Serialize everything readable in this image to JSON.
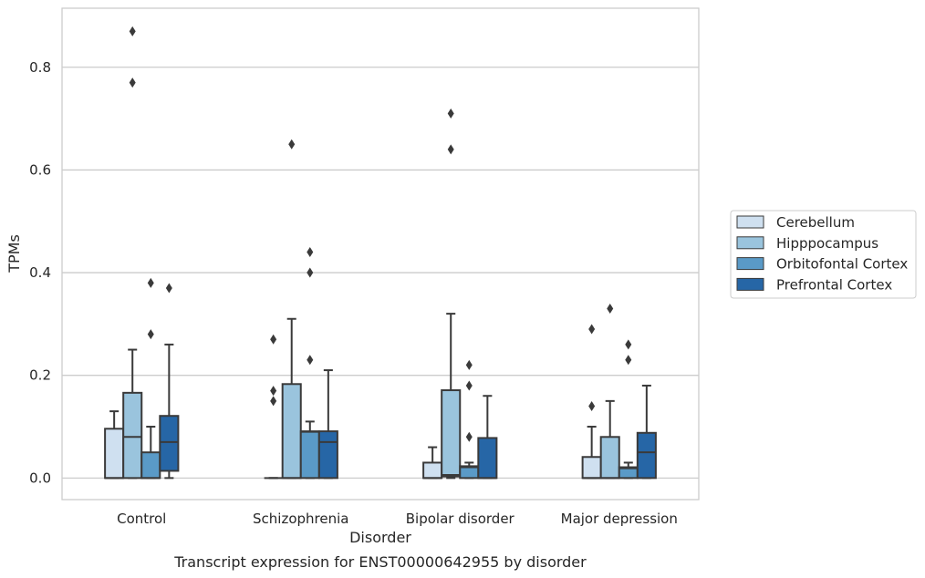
{
  "chart_data": {
    "type": "box",
    "caption": "Transcript expression for ENST00000642955 by disorder",
    "xlabel": "Disorder",
    "ylabel": "TPMs",
    "ylim": [
      -0.042,
      0.915
    ],
    "yticks": [
      0.0,
      0.2,
      0.4,
      0.6,
      0.8
    ],
    "ytick_labels": [
      "0.0",
      "0.2",
      "0.4",
      "0.6",
      "0.8"
    ],
    "grid": "horizontal",
    "legend_position": "right",
    "categories": [
      "Control",
      "Schizophrenia",
      "Bipolar disorder",
      "Major depression"
    ],
    "series": [
      {
        "name": "Cerebellum",
        "color": "#cfe0f0",
        "boxes": [
          {
            "q1": 0.0,
            "median": 0.0,
            "q3": 0.096,
            "whisker_low": 0.0,
            "whisker_high": 0.13,
            "outliers": []
          },
          {
            "q1": 0.0,
            "median": 0.0,
            "q3": 0.0,
            "whisker_low": 0.0,
            "whisker_high": 0.0,
            "outliers": [
              0.27,
              0.17,
              0.15
            ]
          },
          {
            "q1": 0.0,
            "median": 0.0,
            "q3": 0.03,
            "whisker_low": 0.0,
            "whisker_high": 0.06,
            "outliers": []
          },
          {
            "q1": 0.0,
            "median": 0.0,
            "q3": 0.041,
            "whisker_low": 0.0,
            "whisker_high": 0.1,
            "outliers": [
              0.29,
              0.14
            ]
          }
        ]
      },
      {
        "name": "Hipppocampus",
        "color": "#9ac4dd",
        "boxes": [
          {
            "q1": 0.0,
            "median": 0.08,
            "q3": 0.166,
            "whisker_low": 0.0,
            "whisker_high": 0.25,
            "outliers": [
              0.87,
              0.77
            ]
          },
          {
            "q1": 0.0,
            "median": 0.0,
            "q3": 0.183,
            "whisker_low": 0.0,
            "whisker_high": 0.31,
            "outliers": [
              0.65
            ]
          },
          {
            "q1": 0.003,
            "median": 0.006,
            "q3": 0.171,
            "whisker_low": 0.0,
            "whisker_high": 0.32,
            "outliers": [
              0.71,
              0.64
            ]
          },
          {
            "q1": 0.0,
            "median": 0.0,
            "q3": 0.08,
            "whisker_low": 0.0,
            "whisker_high": 0.15,
            "outliers": [
              0.33
            ]
          }
        ]
      },
      {
        "name": "Orbitofontal Cortex",
        "color": "#5a9ac7",
        "boxes": [
          {
            "q1": 0.0,
            "median": 0.0,
            "q3": 0.05,
            "whisker_low": 0.0,
            "whisker_high": 0.1,
            "outliers": [
              0.38,
              0.28
            ]
          },
          {
            "q1": 0.0,
            "median": 0.09,
            "q3": 0.091,
            "whisker_low": 0.0,
            "whisker_high": 0.11,
            "outliers": [
              0.44,
              0.4,
              0.23
            ]
          },
          {
            "q1": 0.0,
            "median": 0.021,
            "q3": 0.023,
            "whisker_low": 0.0,
            "whisker_high": 0.03,
            "outliers": [
              0.22,
              0.18,
              0.08
            ]
          },
          {
            "q1": 0.0,
            "median": 0.019,
            "q3": 0.021,
            "whisker_low": 0.0,
            "whisker_high": 0.03,
            "outliers": [
              0.26,
              0.23
            ]
          }
        ]
      },
      {
        "name": "Prefrontal Cortex",
        "color": "#2666a6",
        "boxes": [
          {
            "q1": 0.014,
            "median": 0.07,
            "q3": 0.121,
            "whisker_low": 0.0,
            "whisker_high": 0.26,
            "outliers": [
              0.37
            ]
          },
          {
            "q1": 0.0,
            "median": 0.07,
            "q3": 0.091,
            "whisker_low": 0.0,
            "whisker_high": 0.21,
            "outliers": []
          },
          {
            "q1": 0.0,
            "median": 0.0,
            "q3": 0.078,
            "whisker_low": 0.0,
            "whisker_high": 0.16,
            "outliers": []
          },
          {
            "q1": 0.0,
            "median": 0.05,
            "q3": 0.088,
            "whisker_low": 0.0,
            "whisker_high": 0.18,
            "outliers": []
          }
        ]
      }
    ]
  }
}
